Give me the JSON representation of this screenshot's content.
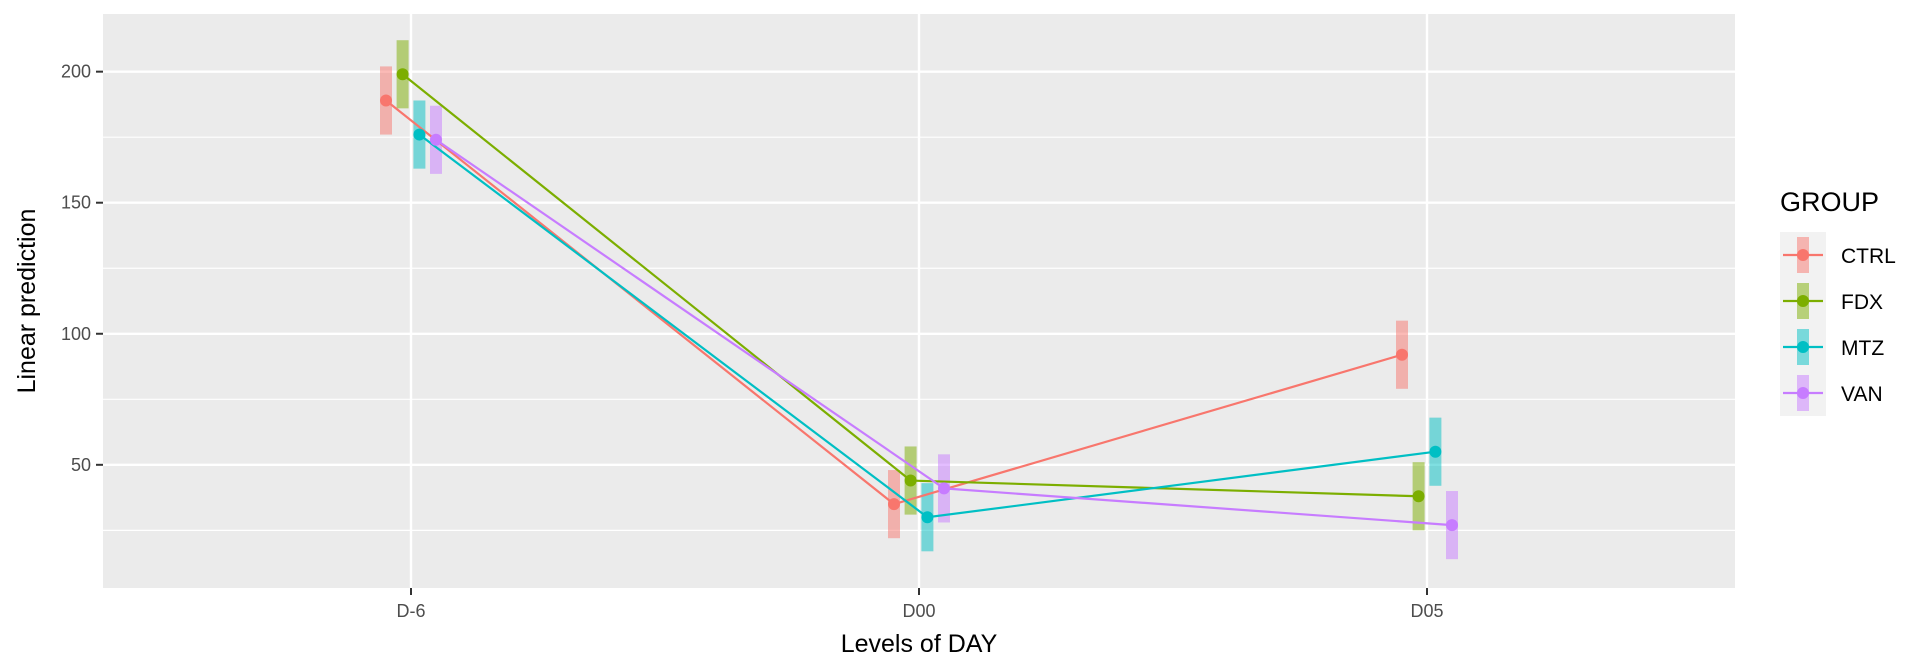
{
  "chart_data": {
    "type": "line",
    "xlabel": "Levels of DAY",
    "ylabel": "Linear prediction",
    "categories": [
      "D-6",
      "D00",
      "D05"
    ],
    "ylim": [
      3,
      222
    ],
    "yticks": [
      50,
      100,
      150,
      200
    ],
    "grid": true,
    "legend_title": "GROUP",
    "legend_position": "right",
    "series": [
      {
        "name": "CTRL",
        "color": "#F8766D",
        "values": [
          189,
          35,
          92
        ],
        "lower": [
          176,
          22,
          79
        ],
        "upper": [
          202,
          48,
          105
        ]
      },
      {
        "name": "FDX",
        "color": "#7CAE00",
        "values": [
          199,
          44,
          38
        ],
        "lower": [
          186,
          31,
          25
        ],
        "upper": [
          212,
          57,
          51
        ]
      },
      {
        "name": "MTZ",
        "color": "#00BFC4",
        "values": [
          176,
          30,
          55
        ],
        "lower": [
          163,
          17,
          42
        ],
        "upper": [
          189,
          43,
          68
        ]
      },
      {
        "name": "VAN",
        "color": "#C77CFF",
        "values": [
          174,
          41,
          27
        ],
        "lower": [
          161,
          28,
          14
        ],
        "upper": [
          187,
          54,
          40
        ]
      }
    ]
  }
}
